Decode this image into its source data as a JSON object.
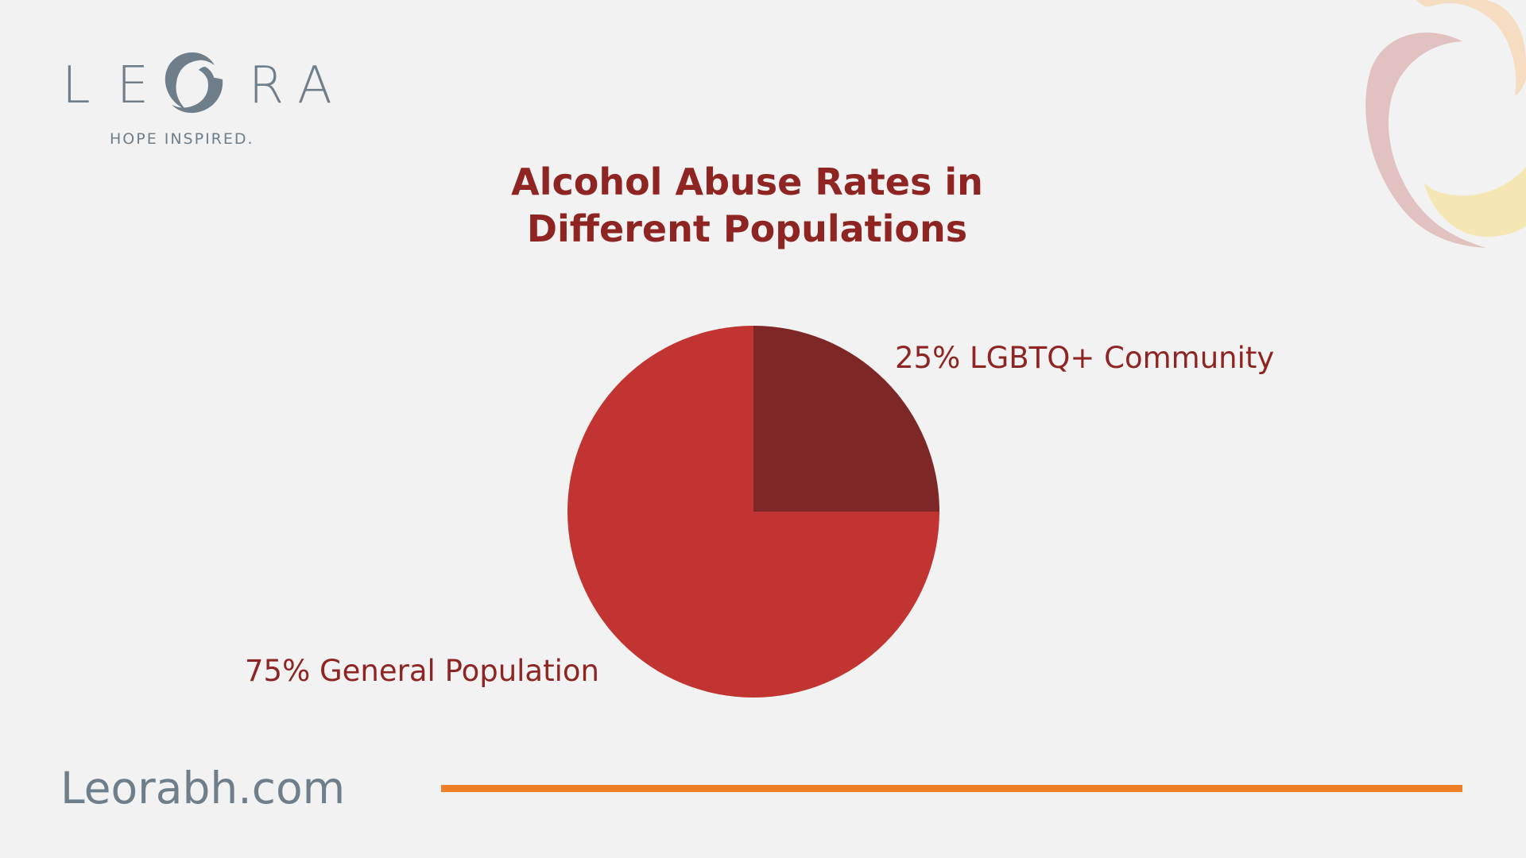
{
  "brand": {
    "logo_letters": [
      "L",
      "E",
      "O",
      "R",
      "A"
    ],
    "tagline": "HOPE INSPIRED.",
    "website": "Leorabh.com"
  },
  "colors": {
    "background": "#f2f2f2",
    "title": "#8f2522",
    "logo_gray": "#6f7e8b",
    "accent_line": "#ef7f26",
    "slice_lgbtq": "#7d2826",
    "slice_general": "#c23431",
    "deco_pink": "#e2c2c0",
    "deco_yellow": "#f5e7b4",
    "deco_peach": "#f6dcc0"
  },
  "chart_data": {
    "type": "pie",
    "title": "Alcohol Abuse Rates in Different Populations",
    "title_lines": [
      "Alcohol Abuse Rates in",
      "Different Populations"
    ],
    "slices": [
      {
        "label": "25% LGBTQ+ Community",
        "name": "LGBTQ+ Community",
        "value": 25,
        "color": "#7d2826"
      },
      {
        "label": "75% General Population",
        "name": "General Population",
        "value": 75,
        "color": "#c23431"
      }
    ],
    "start_angle": "12 o'clock",
    "direction": "clockwise",
    "legend": "none"
  }
}
